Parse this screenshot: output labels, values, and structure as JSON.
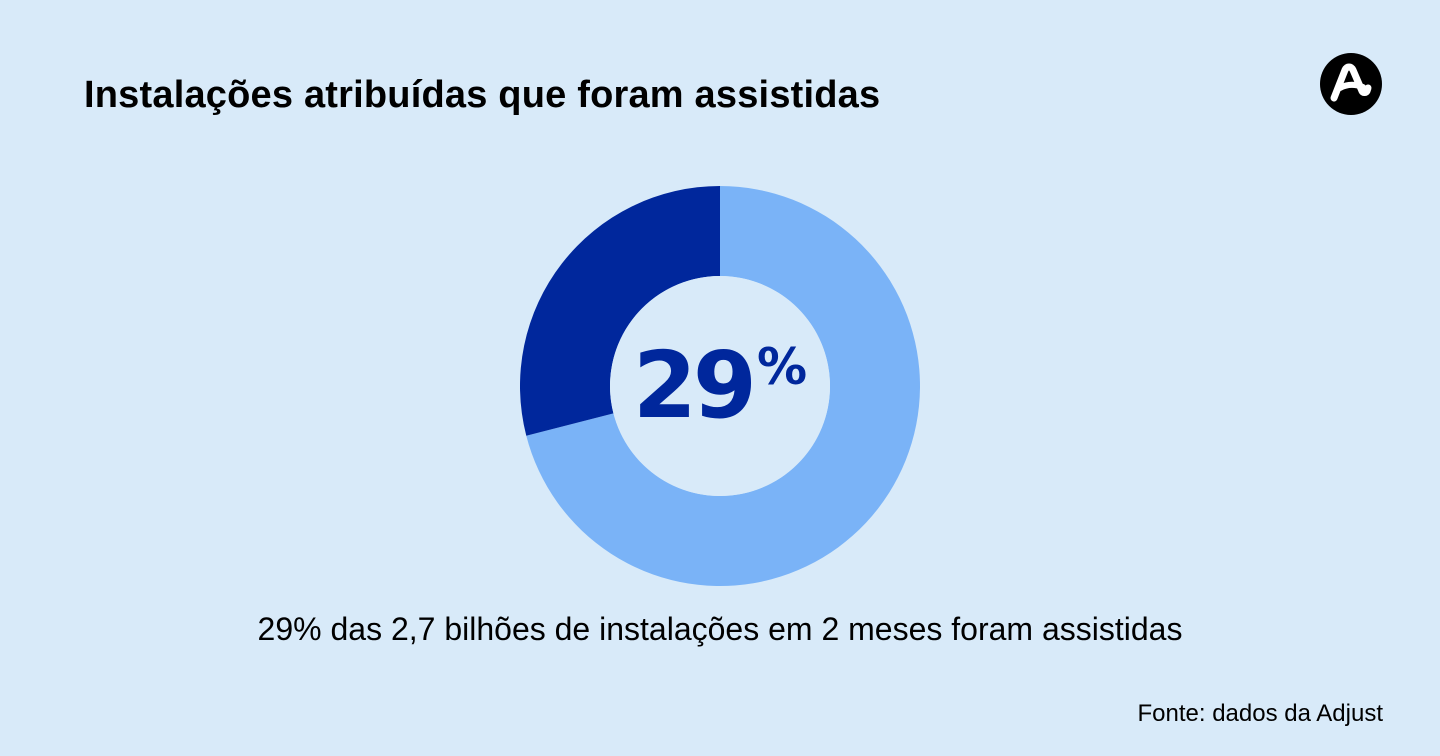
{
  "title": "Instalações atribuídas que foram assistidas",
  "logo": {
    "icon": "adjust-logo-icon",
    "background": "#000000",
    "foreground": "#ffffff"
  },
  "chart_data": {
    "type": "pie",
    "donut": true,
    "title": "",
    "center_label": {
      "value": "29",
      "unit": "%"
    },
    "slices": [
      {
        "label": "",
        "value": 29,
        "color": "#00279c"
      },
      {
        "label": "",
        "value": 71,
        "color": "#7ab3f7"
      }
    ],
    "legend": "none"
  },
  "caption": "29% das 2,7 bilhões de instalações em 2 meses foram assistidas",
  "source": "Fonte: dados da Adjust",
  "colors": {
    "background": "#d8eaf9",
    "accent": "#00279c",
    "secondary": "#7ab3f7"
  }
}
